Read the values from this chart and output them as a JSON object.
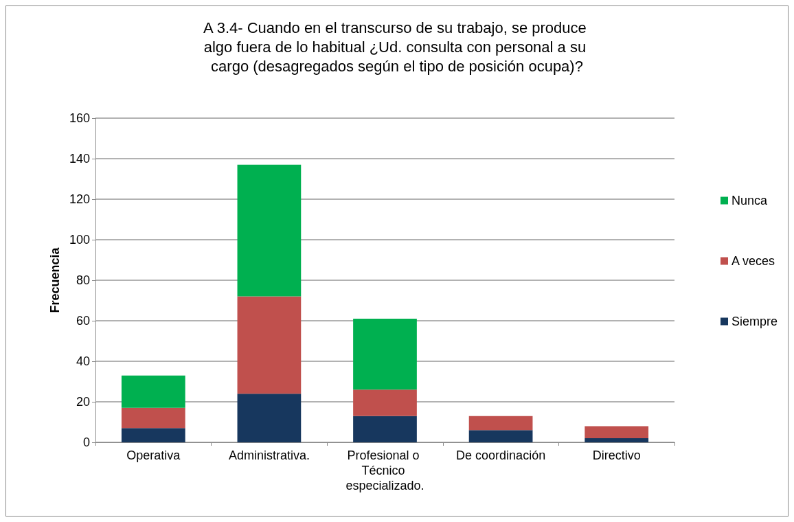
{
  "chart_data": {
    "type": "bar",
    "title": "A 3.4- Cuando en el transcurso de su trabajo, se produce algo fuera de lo habitual ¿Ud. consulta con personal a su cargo (desagregados según el tipo de posición ocupa)?",
    "ylabel": "Frecuencia",
    "categories": [
      "Operativa",
      "Administrativa.",
      "Profesional o Técnico especializado.",
      "De coordinación",
      "Directivo"
    ],
    "series": [
      {
        "name": "Siempre",
        "color": "#17375e",
        "values": [
          7,
          24,
          13,
          6,
          2
        ]
      },
      {
        "name": "A veces",
        "color": "#c0504d",
        "values": [
          10,
          48,
          13,
          7,
          6
        ]
      },
      {
        "name": "Nunca",
        "color": "#00b050",
        "values": [
          16,
          65,
          35,
          0,
          0
        ]
      }
    ],
    "stacked": true,
    "ylim": [
      0,
      160
    ],
    "yticks": [
      0,
      20,
      40,
      60,
      80,
      100,
      120,
      140,
      160
    ],
    "grid": "y",
    "legend": "right"
  }
}
